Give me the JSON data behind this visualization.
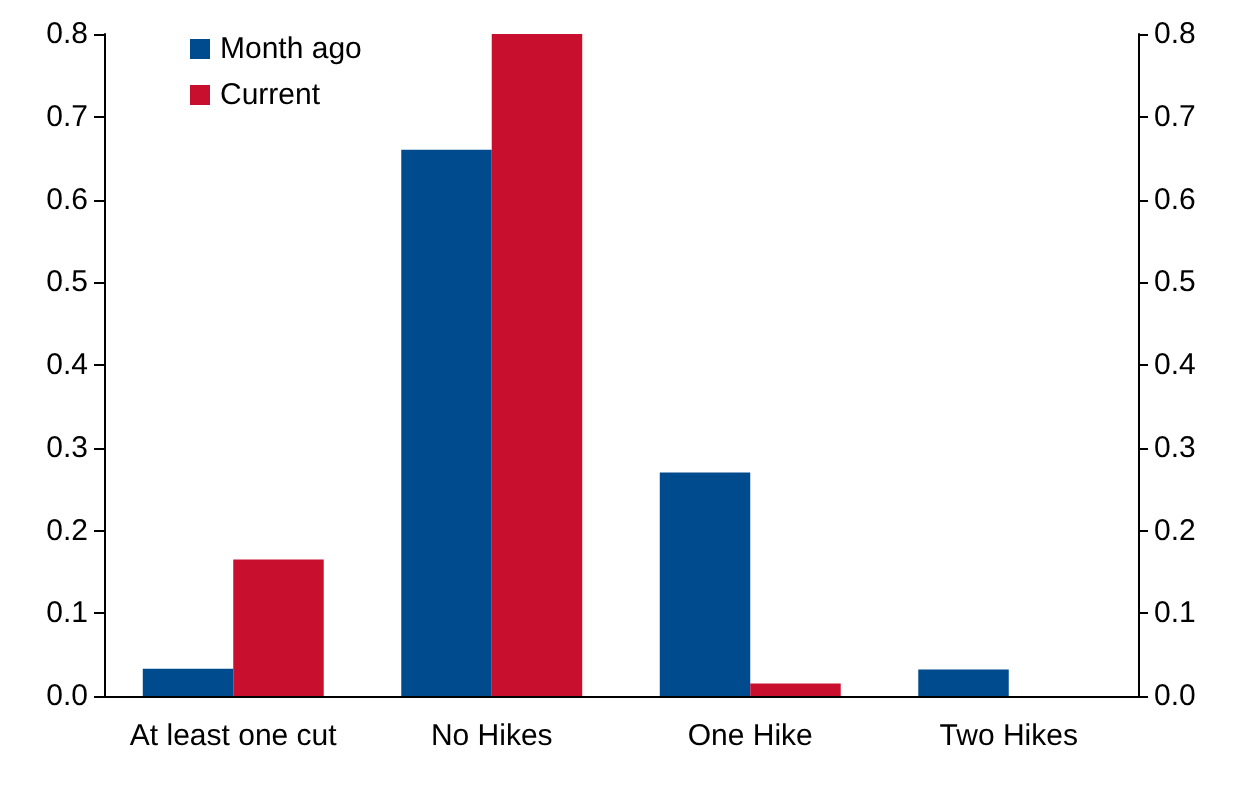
{
  "chart_data": {
    "type": "bar",
    "categories": [
      "At least one cut",
      "No Hikes",
      "One Hike",
      "Two Hikes"
    ],
    "series": [
      {
        "name": "Month ago",
        "color": "#004b8d",
        "values": [
          0.033,
          0.66,
          0.27,
          0.032
        ]
      },
      {
        "name": "Current",
        "color": "#c8102e",
        "values": [
          0.165,
          0.8,
          0.015,
          0
        ]
      }
    ],
    "ylim": [
      0,
      0.8
    ],
    "yticks": [
      {
        "value": 0,
        "label": "0.0"
      },
      0.1,
      0.2,
      0.3,
      0.4,
      0.5,
      0.6,
      0.7,
      0.8
    ],
    "y2lim": [
      0,
      0.8
    ],
    "y2ticks": [
      {
        "value": 0,
        "label": "0.0"
      },
      0.1,
      0.2,
      0.3,
      0.4,
      0.5,
      0.6,
      0.7,
      0.8
    ],
    "legend": "top left",
    "grid": false
  }
}
